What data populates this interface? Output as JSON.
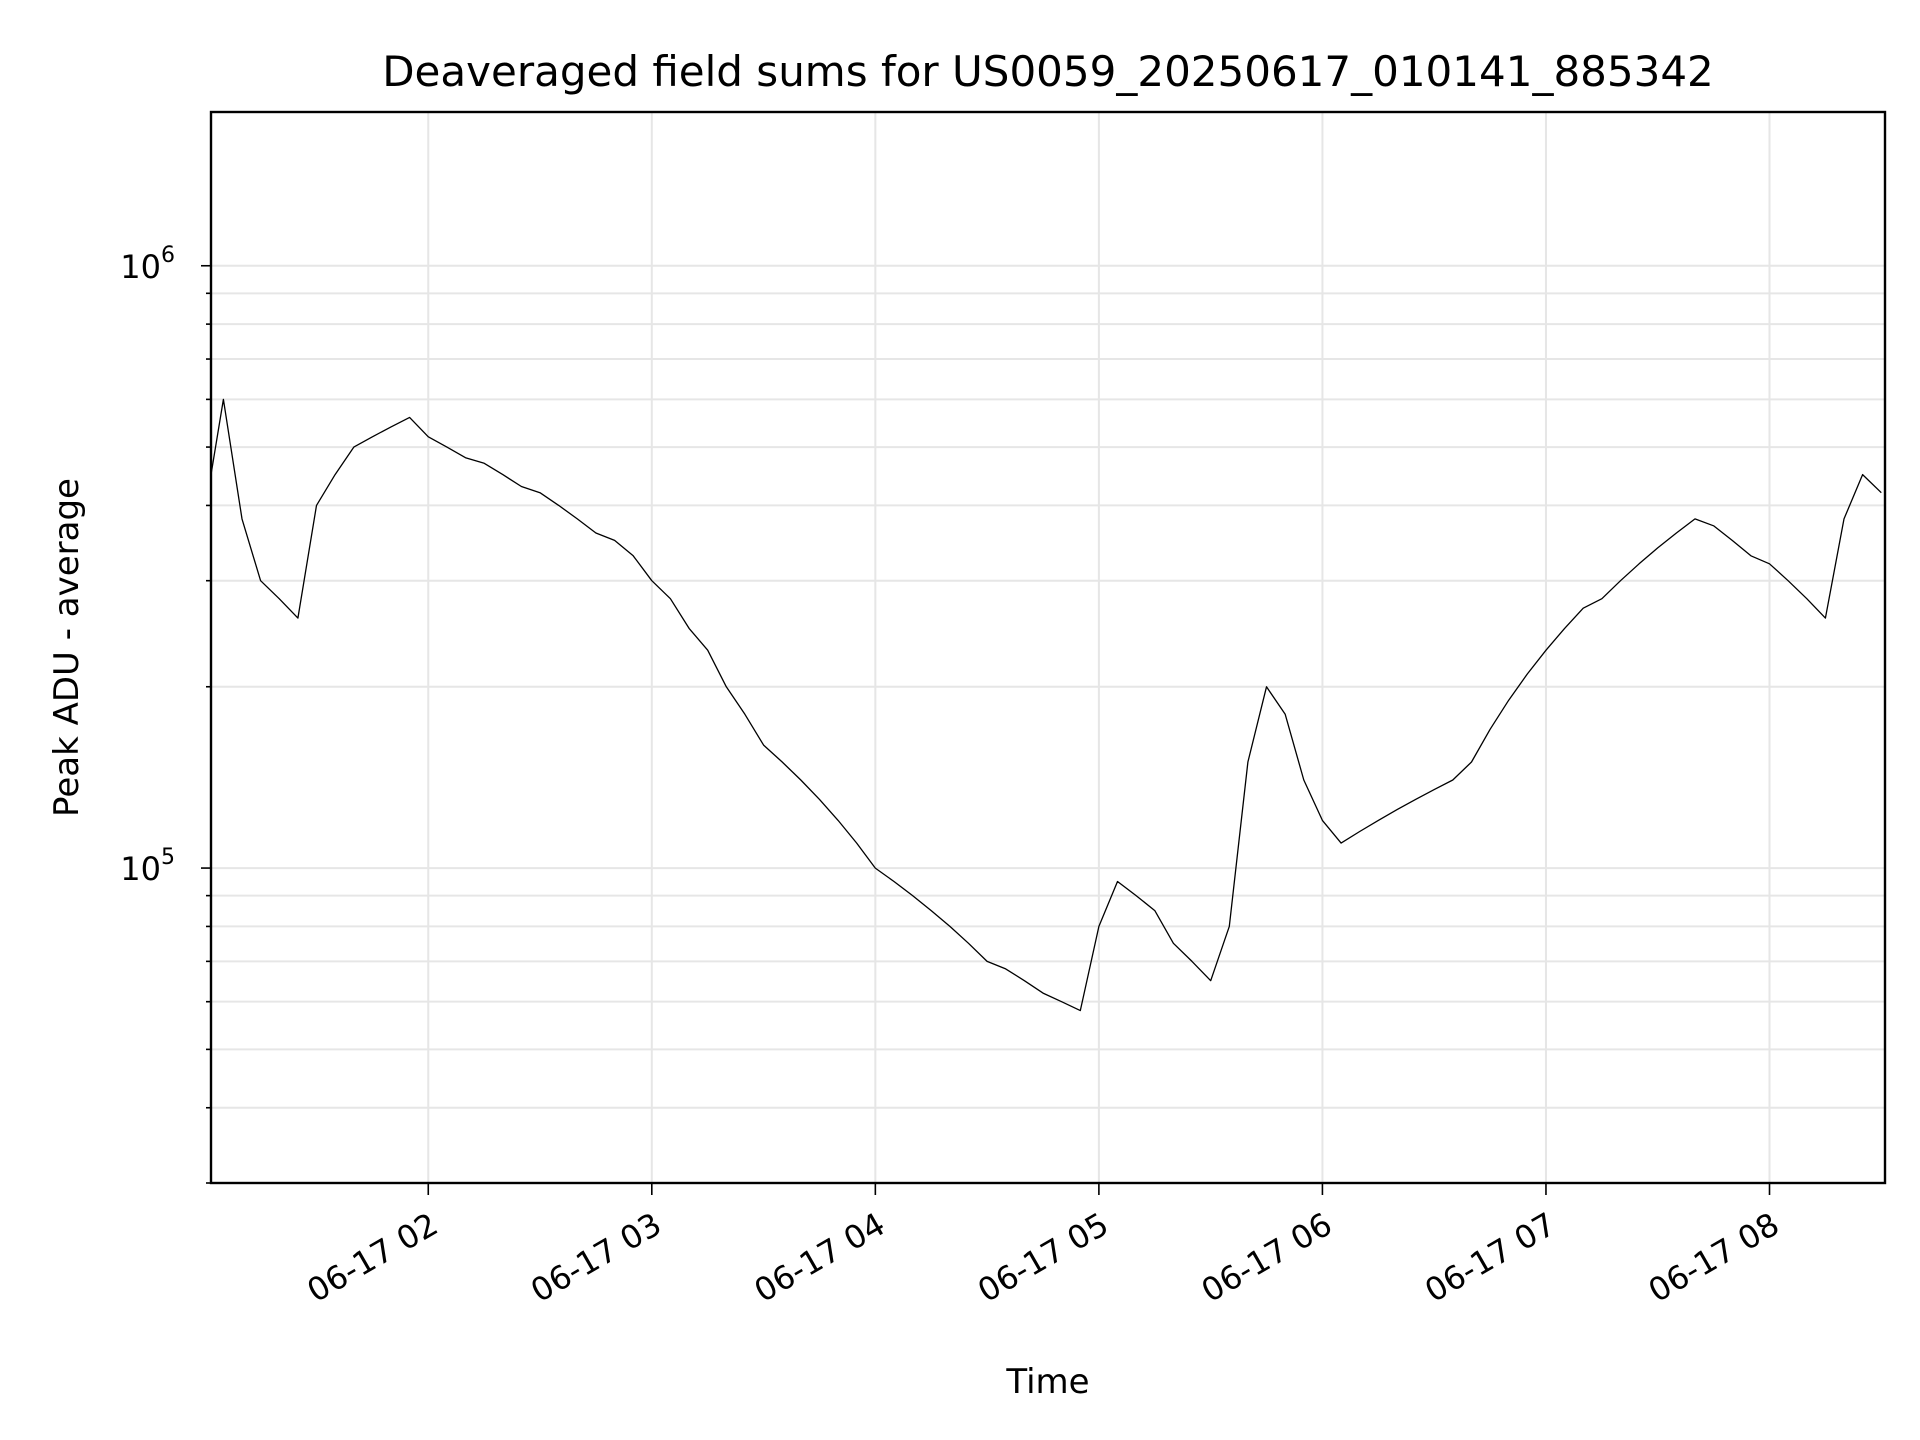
{
  "chart_data": {
    "type": "line",
    "title": "Deaveraged field sums for US0059_20250617_010141_885342",
    "xlabel": "Time",
    "ylabel": "Peak ADU - average",
    "y_scale": "log",
    "ylim": [
      30000,
      1800000
    ],
    "xlim": [
      "2025-06-17 01:01:41",
      "2025-06-17 08:31:00"
    ],
    "x_ticks": [
      {
        "label": "06-17 02",
        "time": "2025-06-17 02:00"
      },
      {
        "label": "06-17 03",
        "time": "2025-06-17 03:00"
      },
      {
        "label": "06-17 04",
        "time": "2025-06-17 04:00"
      },
      {
        "label": "06-17 05",
        "time": "2025-06-17 05:00"
      },
      {
        "label": "06-17 06",
        "time": "2025-06-17 06:00"
      },
      {
        "label": "06-17 07",
        "time": "2025-06-17 07:00"
      },
      {
        "label": "06-17 08",
        "time": "2025-06-17 08:00"
      }
    ],
    "y_ticks": [
      {
        "base": "10",
        "exp": "5",
        "value": 100000
      },
      {
        "base": "10",
        "exp": "6",
        "value": 1000000
      }
    ],
    "grid": true,
    "line_color": "#000000",
    "grid_color": "#e6e6e6",
    "series": [
      {
        "x": [
          "2025-06-17 01:01",
          "2025-06-17 01:05",
          "2025-06-17 01:10",
          "2025-06-17 01:15",
          "2025-06-17 01:20",
          "2025-06-17 01:25",
          "2025-06-17 01:30",
          "2025-06-17 01:35",
          "2025-06-17 01:40",
          "2025-06-17 01:45",
          "2025-06-17 01:50",
          "2025-06-17 01:55",
          "2025-06-17 02:00",
          "2025-06-17 02:05",
          "2025-06-17 02:10",
          "2025-06-17 02:15",
          "2025-06-17 02:20",
          "2025-06-17 02:25",
          "2025-06-17 02:30",
          "2025-06-17 02:35",
          "2025-06-17 02:40",
          "2025-06-17 02:45",
          "2025-06-17 02:50",
          "2025-06-17 02:55",
          "2025-06-17 03:00",
          "2025-06-17 03:05",
          "2025-06-17 03:10",
          "2025-06-17 03:15",
          "2025-06-17 03:20",
          "2025-06-17 03:25",
          "2025-06-17 03:30",
          "2025-06-17 03:35",
          "2025-06-17 03:40",
          "2025-06-17 03:45",
          "2025-06-17 03:50",
          "2025-06-17 03:55",
          "2025-06-17 04:00",
          "2025-06-17 04:05",
          "2025-06-17 04:10",
          "2025-06-17 04:15",
          "2025-06-17 04:20",
          "2025-06-17 04:25",
          "2025-06-17 04:30",
          "2025-06-17 04:35",
          "2025-06-17 04:40",
          "2025-06-17 04:45",
          "2025-06-17 04:50",
          "2025-06-17 04:55",
          "2025-06-17 05:00",
          "2025-06-17 05:05",
          "2025-06-17 05:10",
          "2025-06-17 05:15",
          "2025-06-17 05:20",
          "2025-06-17 05:25",
          "2025-06-17 05:30",
          "2025-06-17 05:35",
          "2025-06-17 05:40",
          "2025-06-17 05:45",
          "2025-06-17 05:50",
          "2025-06-17 05:55",
          "2025-06-17 06:00",
          "2025-06-17 06:05",
          "2025-06-17 06:10",
          "2025-06-17 06:15",
          "2025-06-17 06:20",
          "2025-06-17 06:25",
          "2025-06-17 06:30",
          "2025-06-17 06:35",
          "2025-06-17 06:40",
          "2025-06-17 06:45",
          "2025-06-17 06:50",
          "2025-06-17 06:55",
          "2025-06-17 07:00",
          "2025-06-17 07:05",
          "2025-06-17 07:10",
          "2025-06-17 07:15",
          "2025-06-17 07:20",
          "2025-06-17 07:25",
          "2025-06-17 07:30",
          "2025-06-17 07:35",
          "2025-06-17 07:40",
          "2025-06-17 07:45",
          "2025-06-17 07:50",
          "2025-06-17 07:55",
          "2025-06-17 08:00",
          "2025-06-17 08:05",
          "2025-06-17 08:10",
          "2025-06-17 08:15",
          "2025-06-17 08:20",
          "2025-06-17 08:25",
          "2025-06-17 08:30"
        ],
        "y": [
          450000,
          600000,
          380000,
          300000,
          280000,
          260000,
          400000,
          450000,
          500000,
          520000,
          540000,
          560000,
          520000,
          500000,
          480000,
          470000,
          450000,
          430000,
          420000,
          400000,
          380000,
          360000,
          350000,
          330000,
          300000,
          280000,
          250000,
          230000,
          200000,
          180000,
          160000,
          150000,
          140000,
          130000,
          120000,
          110000,
          100000,
          95000,
          90000,
          85000,
          80000,
          75000,
          70000,
          68000,
          65000,
          62000,
          60000,
          58000,
          80000,
          95000,
          90000,
          85000,
          75000,
          70000,
          65000,
          80000,
          150000,
          200000,
          180000,
          140000,
          120000,
          110000,
          115000,
          120000,
          125000,
          130000,
          135000,
          140000,
          150000,
          170000,
          190000,
          210000,
          230000,
          250000,
          270000,
          280000,
          300000,
          320000,
          340000,
          360000,
          380000,
          370000,
          350000,
          330000,
          320000,
          300000,
          280000,
          260000,
          380000,
          450000,
          420000
        ]
      }
    ]
  }
}
